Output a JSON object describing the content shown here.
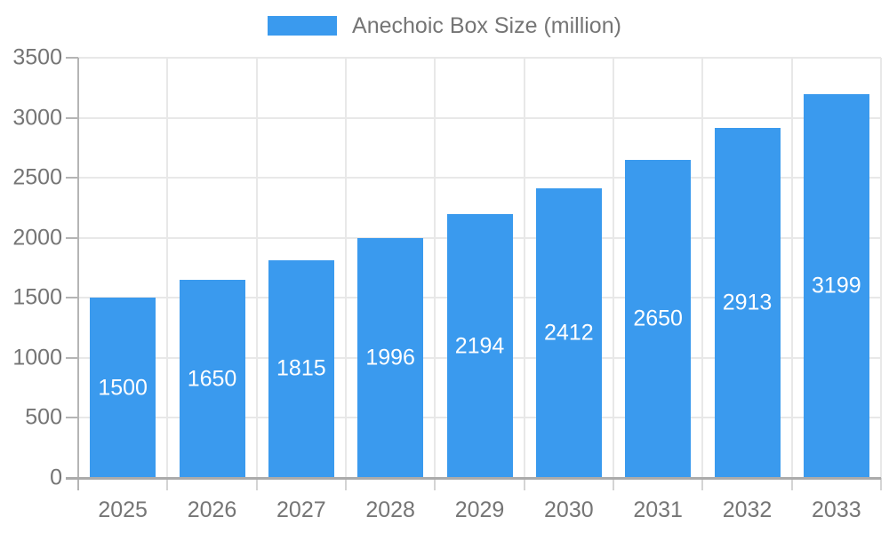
{
  "legend": {
    "label": "Anechoic Box Size (million)"
  },
  "chart_data": {
    "type": "bar",
    "title": "",
    "xlabel": "",
    "ylabel": "",
    "categories": [
      "2025",
      "2026",
      "2027",
      "2028",
      "2029",
      "2030",
      "2031",
      "2032",
      "2033"
    ],
    "series": [
      {
        "name": "Anechoic Box Size (million)",
        "values": [
          1500,
          1650,
          1815,
          1996,
          2194,
          2412,
          2650,
          2913,
          3199
        ]
      }
    ],
    "ylim": [
      0,
      3500
    ],
    "ytick_step": 500,
    "y_tick_labels": [
      "0",
      "500",
      "1000",
      "1500",
      "2000",
      "2500",
      "3000",
      "3500"
    ],
    "grid": true,
    "legend_position": "top-center",
    "value_labels": "inside-center"
  },
  "colors": {
    "bar": "#3A9AEE",
    "axis_text": "#757575",
    "legend_text": "#757575",
    "gridline": "#e8e8e8",
    "axis_line": "#ababab",
    "tick_line": "#b5b5b5",
    "x_tick_line": "#d4d4d4",
    "bar_value_text": "#ffffff",
    "background": "#ffffff"
  }
}
